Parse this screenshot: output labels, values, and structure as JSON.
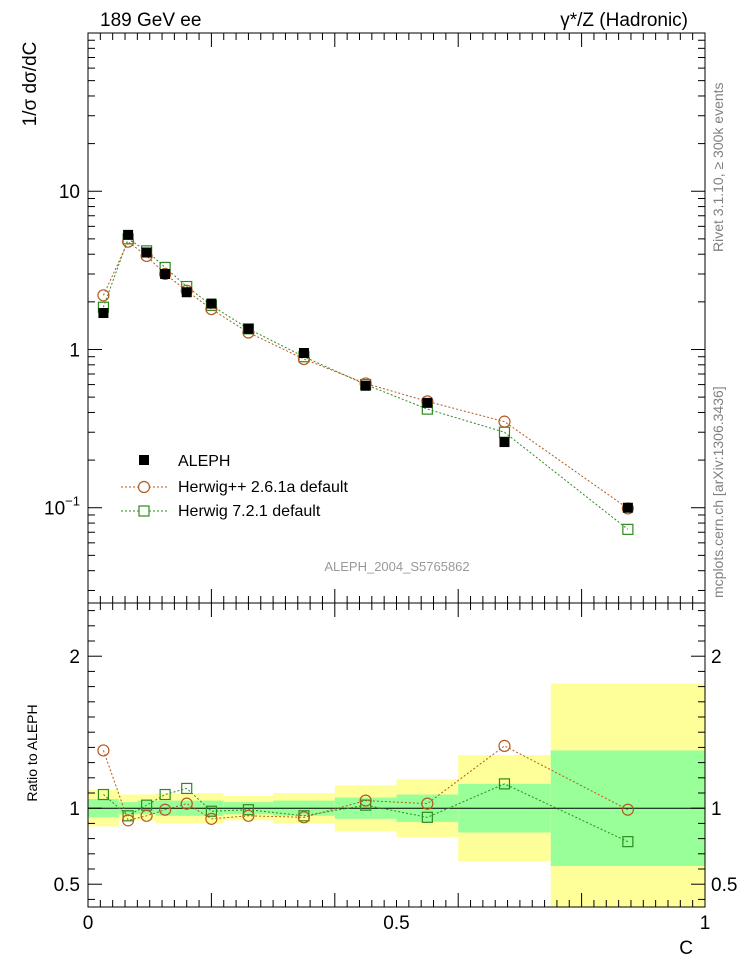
{
  "header": {
    "left": "189 GeV ee",
    "right": "γ*/Z (Hadronic)"
  },
  "side_labels": {
    "rivet": "Rivet 3.1.10, ≥ 300k events",
    "mcplots": "mcplots.cern.ch [arXiv:1306.3436]"
  },
  "watermark": "ALEPH_2004_S5765862",
  "colors": {
    "data": "#000000",
    "herwigpp": "#b35a1f",
    "herwig7": "#2e8b1f",
    "band_inner": "#99ff99",
    "band_outer": "#ffff99"
  },
  "chart_data": [
    {
      "type": "scatter",
      "ylabel": "1/σ  dσ/dC",
      "xlabel": "C",
      "xlim": [
        0,
        1
      ],
      "ylim": [
        0.025,
        100
      ],
      "yscale": "log",
      "yticks": [
        {
          "value": 10,
          "label": "10"
        },
        {
          "value": 1,
          "label": "1"
        },
        {
          "value": 0.1,
          "label": "10",
          "sup": "−1"
        }
      ],
      "legend_position": "lower-left",
      "x": [
        0.025,
        0.065,
        0.095,
        0.125,
        0.16,
        0.2,
        0.26,
        0.35,
        0.45,
        0.55,
        0.675,
        0.875
      ],
      "series": [
        {
          "name": "ALEPH",
          "marker": "filled-square",
          "values": [
            1.7,
            5.3,
            4.1,
            3.0,
            2.3,
            1.95,
            1.35,
            0.95,
            0.59,
            0.46,
            0.26,
            0.1
          ]
        },
        {
          "name": "Herwig++ 2.6.1a default",
          "marker": "open-circle",
          "values": [
            2.2,
            4.8,
            3.9,
            3.0,
            2.35,
            1.8,
            1.28,
            0.87,
            0.61,
            0.47,
            0.35,
            0.099
          ]
        },
        {
          "name": "Herwig 7.2.1 default",
          "marker": "open-square",
          "values": [
            1.85,
            5.0,
            4.2,
            3.3,
            2.5,
            1.9,
            1.35,
            0.9,
            0.6,
            0.42,
            0.3,
            0.073
          ]
        }
      ]
    },
    {
      "type": "scatter",
      "ylabel": "Ratio to ALEPH",
      "xlabel": "C",
      "xlim": [
        0,
        1
      ],
      "ylim": [
        0.35,
        2.35
      ],
      "yticks": [
        {
          "value": 2,
          "label": "2"
        },
        {
          "value": 1,
          "label": "1"
        },
        {
          "value": 0.5,
          "label": "0.5"
        }
      ],
      "xticks": [
        {
          "value": 0,
          "label": "0"
        },
        {
          "value": 0.5,
          "label": "0.5"
        },
        {
          "value": 1,
          "label": "1"
        }
      ],
      "bins": [
        {
          "lo": 0.0,
          "hi": 0.05,
          "inner": [
            0.94,
            1.06
          ],
          "outer": [
            0.88,
            1.12
          ]
        },
        {
          "lo": 0.05,
          "hi": 0.08,
          "inner": [
            0.96,
            1.04
          ],
          "outer": [
            0.92,
            1.09
          ]
        },
        {
          "lo": 0.08,
          "hi": 0.11,
          "inner": [
            0.96,
            1.05
          ],
          "outer": [
            0.92,
            1.09
          ]
        },
        {
          "lo": 0.11,
          "hi": 0.14,
          "inner": [
            0.95,
            1.05
          ],
          "outer": [
            0.9,
            1.1
          ]
        },
        {
          "lo": 0.14,
          "hi": 0.18,
          "inner": [
            0.95,
            1.05
          ],
          "outer": [
            0.9,
            1.1
          ]
        },
        {
          "lo": 0.18,
          "hi": 0.22,
          "inner": [
            0.95,
            1.05
          ],
          "outer": [
            0.9,
            1.1
          ]
        },
        {
          "lo": 0.22,
          "hi": 0.3,
          "inner": [
            0.96,
            1.04
          ],
          "outer": [
            0.92,
            1.08
          ]
        },
        {
          "lo": 0.3,
          "hi": 0.4,
          "inner": [
            0.95,
            1.05
          ],
          "outer": [
            0.9,
            1.1
          ]
        },
        {
          "lo": 0.4,
          "hi": 0.5,
          "inner": [
            0.93,
            1.07
          ],
          "outer": [
            0.85,
            1.15
          ]
        },
        {
          "lo": 0.5,
          "hi": 0.6,
          "inner": [
            0.91,
            1.09
          ],
          "outer": [
            0.81,
            1.19
          ]
        },
        {
          "lo": 0.6,
          "hi": 0.75,
          "inner": [
            0.84,
            1.16
          ],
          "outer": [
            0.65,
            1.35
          ]
        },
        {
          "lo": 0.75,
          "hi": 1.0,
          "inner": [
            0.62,
            1.38
          ],
          "outer": [
            0.35,
            1.82
          ]
        }
      ],
      "x": [
        0.025,
        0.065,
        0.095,
        0.125,
        0.16,
        0.2,
        0.26,
        0.35,
        0.45,
        0.55,
        0.675,
        0.875
      ],
      "series": [
        {
          "name": "Herwig++ 2.6.1a default",
          "marker": "open-circle",
          "values": [
            1.38,
            0.92,
            0.95,
            0.99,
            1.03,
            0.93,
            0.95,
            0.94,
            1.05,
            1.03,
            1.41,
            0.99
          ]
        },
        {
          "name": "Herwig 7.2.1 default",
          "marker": "open-square",
          "values": [
            1.09,
            0.95,
            1.02,
            1.09,
            1.13,
            0.98,
            0.99,
            0.95,
            1.02,
            0.94,
            1.16,
            0.78
          ]
        }
      ]
    }
  ]
}
